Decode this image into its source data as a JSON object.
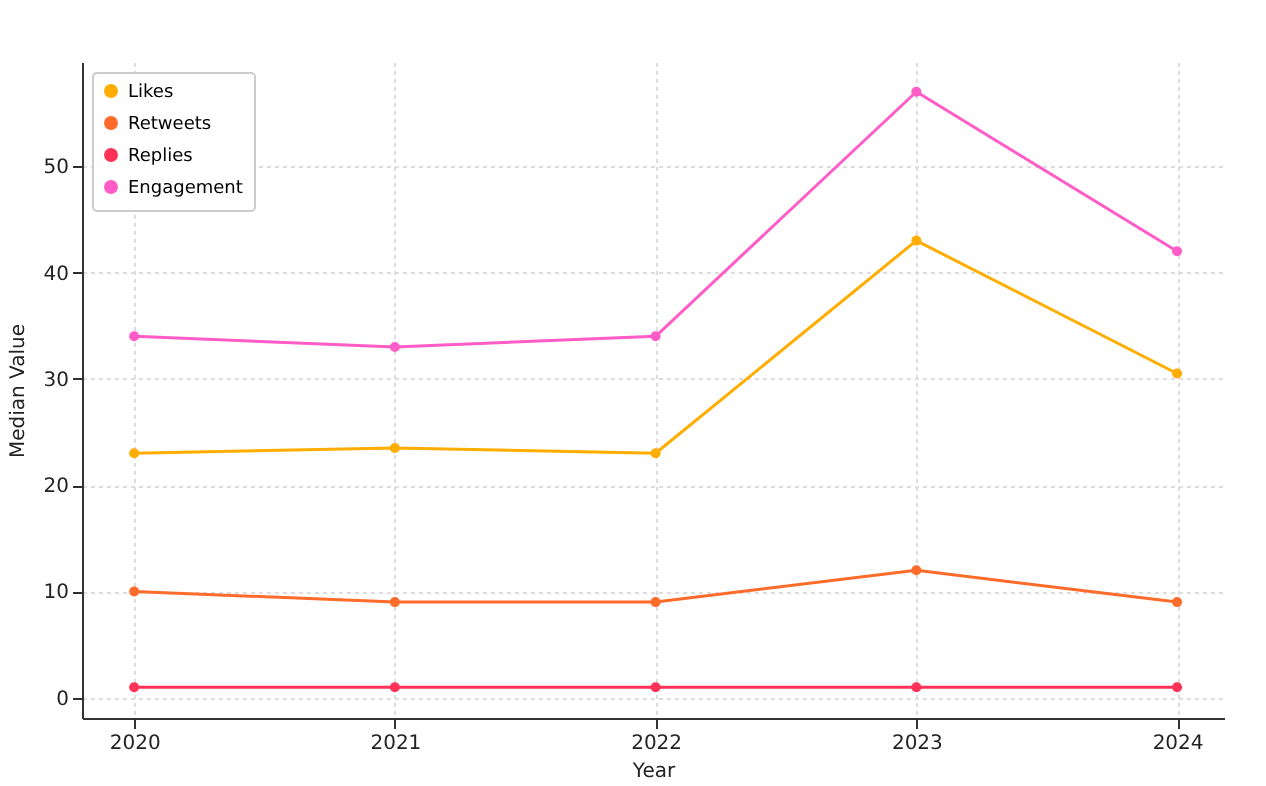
{
  "chart_data": {
    "type": "line",
    "xlabel": "Year",
    "ylabel": "Median Value",
    "x": [
      2020,
      2021,
      2022,
      2023,
      2024
    ],
    "xlim": [
      2019.8,
      2024.18
    ],
    "xticks": [
      2020,
      2021,
      2022,
      2023,
      2024
    ],
    "ylim": [
      -1.9,
      59.8
    ],
    "yticks": [
      0,
      10,
      20,
      30,
      40,
      50
    ],
    "grid": true,
    "legend": "top left",
    "marker": "circle",
    "line_style": "solid",
    "series": [
      {
        "name": "Likes",
        "color": "#ffad00",
        "values": [
          23,
          23.5,
          23,
          43,
          30.5
        ]
      },
      {
        "name": "Retweets",
        "color": "#ff6b2b",
        "values": [
          10,
          9,
          9,
          12,
          9
        ]
      },
      {
        "name": "Replies",
        "color": "#ff3358",
        "values": [
          1,
          1,
          1,
          1,
          1
        ]
      },
      {
        "name": "Engagement",
        "color": "#ff5cc8",
        "values": [
          34,
          33,
          34,
          57,
          42
        ]
      }
    ]
  }
}
